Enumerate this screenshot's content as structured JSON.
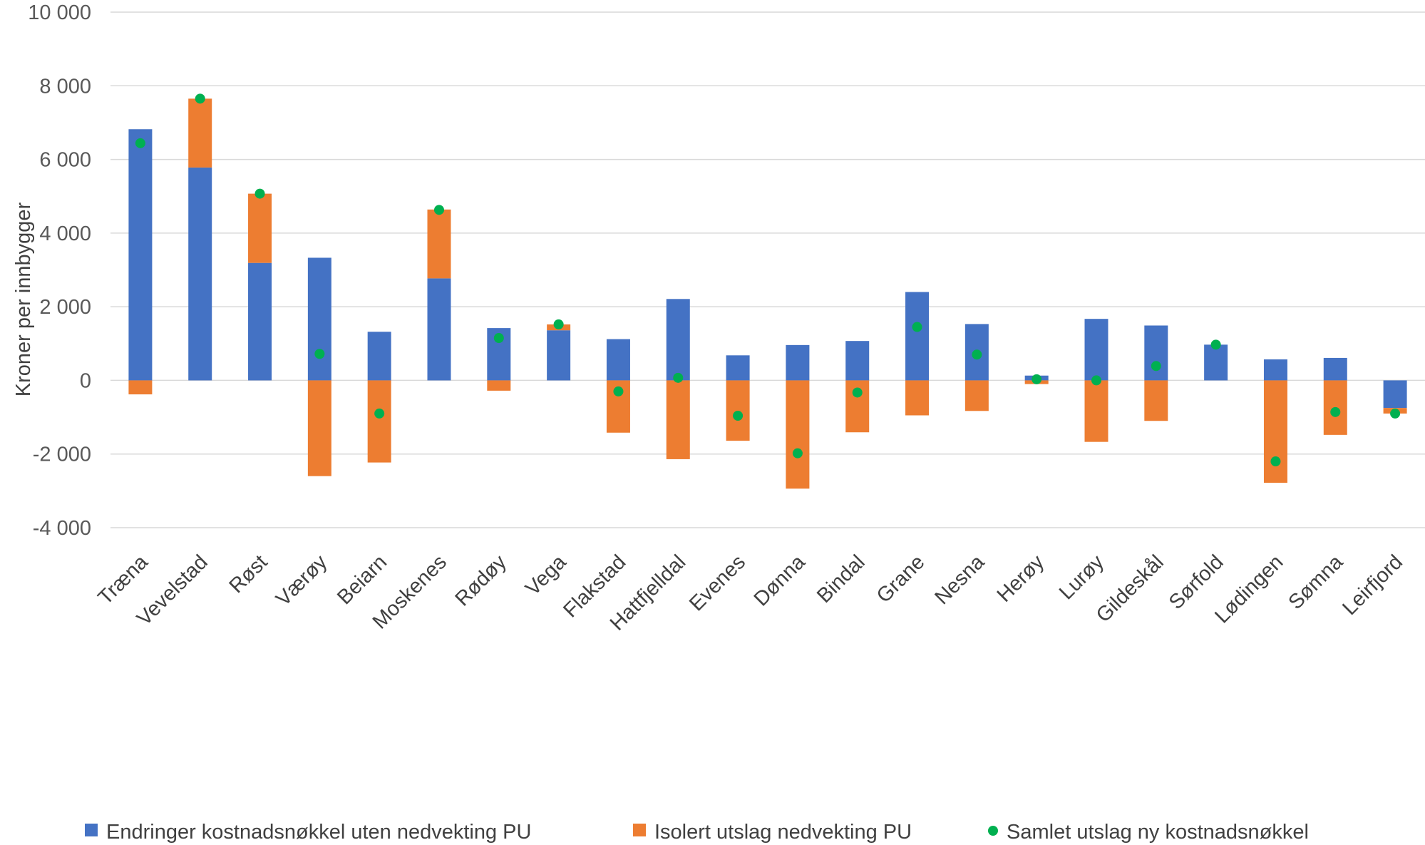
{
  "chart_data": {
    "type": "bar",
    "stacked": true,
    "title": "",
    "ylabel": "Kroner per innbygger",
    "xlabel": "",
    "ylim": [
      -4000,
      10000
    ],
    "yticks": [
      -4000,
      -2000,
      0,
      2000,
      4000,
      6000,
      8000,
      10000
    ],
    "ytick_labels": [
      "-4 000",
      "-2 000",
      "0",
      "2 000",
      "4 000",
      "6 000",
      "8 000",
      "10 000"
    ],
    "grid": true,
    "legend_position": "bottom",
    "categories": [
      "Træna",
      "Vevelstad",
      "Røst",
      "Værøy",
      "Beiarn",
      "Moskenes",
      "Rødøy",
      "Vega",
      "Flakstad",
      "Hattfjelldal",
      "Evenes",
      "Dønna",
      "Bindal",
      "Grane",
      "Nesna",
      "Herøy",
      "Lurøy",
      "Gildeskål",
      "Sørfold",
      "Lødingen",
      "Sømna",
      "Leirfjord"
    ],
    "series": [
      {
        "name": "Endringer kostnadsnøkkel uten nedvekting PU",
        "kind": "bar",
        "color": "#4472C4",
        "values": [
          6820,
          5780,
          3190,
          3330,
          1320,
          2770,
          1420,
          1360,
          1120,
          2210,
          680,
          960,
          1070,
          2400,
          1530,
          130,
          1670,
          1490,
          970,
          570,
          610,
          -750
        ]
      },
      {
        "name": "Isolert utslag nedvekting PU",
        "kind": "bar",
        "color": "#ED7D31",
        "values": [
          -380,
          1870,
          1880,
          -2600,
          -2230,
          1870,
          -280,
          160,
          -1420,
          -2140,
          -1640,
          -2940,
          -1410,
          -950,
          -830,
          -100,
          -1670,
          -1100,
          0,
          -2780,
          -1480,
          -150
        ]
      },
      {
        "name": "Samlet utslag ny kostnadsnøkkel",
        "kind": "point",
        "color": "#00B050",
        "values": [
          6440,
          7650,
          5070,
          720,
          -900,
          4630,
          1150,
          1520,
          -300,
          70,
          -960,
          -1980,
          -330,
          1450,
          700,
          30,
          0,
          390,
          970,
          -2200,
          -860,
          -900
        ]
      }
    ]
  }
}
